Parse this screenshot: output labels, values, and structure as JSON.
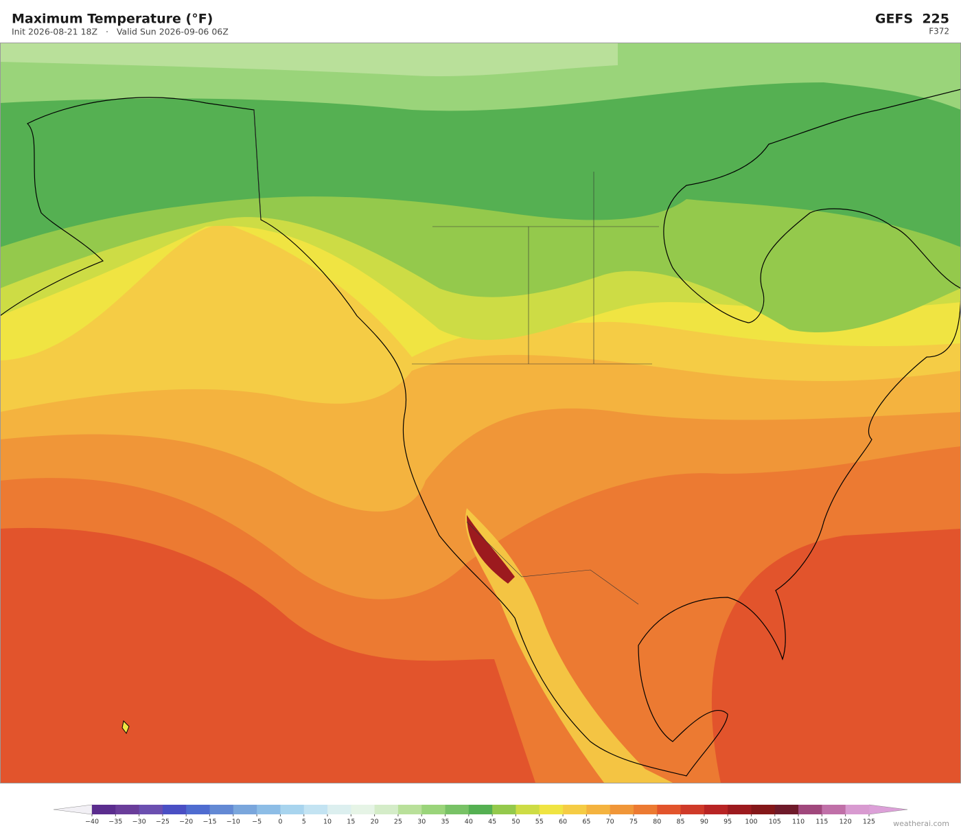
{
  "header": {
    "title": "Maximum Temperature  (°F)",
    "subtitle": "Init 2026-08-21 18Z   ·   Valid Sun 2026-09-06 06Z",
    "model": "GEFS  225",
    "forecast_hour": "F372"
  },
  "colorbar": {
    "ticks": [
      {
        "value": -40,
        "label": "−40"
      },
      {
        "value": -35,
        "label": "−35"
      },
      {
        "value": -30,
        "label": "−30"
      },
      {
        "value": -25,
        "label": "−25"
      },
      {
        "value": -20,
        "label": "−20"
      },
      {
        "value": -15,
        "label": "−15"
      },
      {
        "value": -10,
        "label": "−10"
      },
      {
        "value": -5,
        "label": "−5"
      },
      0,
      5,
      10,
      15,
      20,
      25,
      30,
      35,
      40,
      45,
      50,
      55,
      60,
      65,
      70,
      75,
      80,
      85,
      90,
      95,
      100,
      105,
      110,
      115,
      120,
      125
    ],
    "colors": [
      "#5b2d8e",
      "#6a3d9a",
      "#6b4fb0",
      "#4a4fc4",
      "#4f6cd0",
      "#6389d4",
      "#7aa6dc",
      "#8dbde6",
      "#a8d4ee",
      "#c3e3f2",
      "#dcefef",
      "#e6f4e6",
      "#d4ecc8",
      "#b9e09a",
      "#9ad47a",
      "#78c266",
      "#55b052",
      "#94c94c",
      "#cddc45",
      "#f0e442",
      "#f5cc45",
      "#f4b33f",
      "#f09638",
      "#ec7a32",
      "#e2542c",
      "#cf3a29",
      "#b82424",
      "#9c1a1e",
      "#841719",
      "#6e1a2a",
      "#a0487c",
      "#c070a8",
      "#d89ad0"
    ],
    "under_color": "#f2f0f5",
    "over_color": "#dca0d8"
  },
  "footer": {
    "watermark": "weatherai.com"
  }
}
